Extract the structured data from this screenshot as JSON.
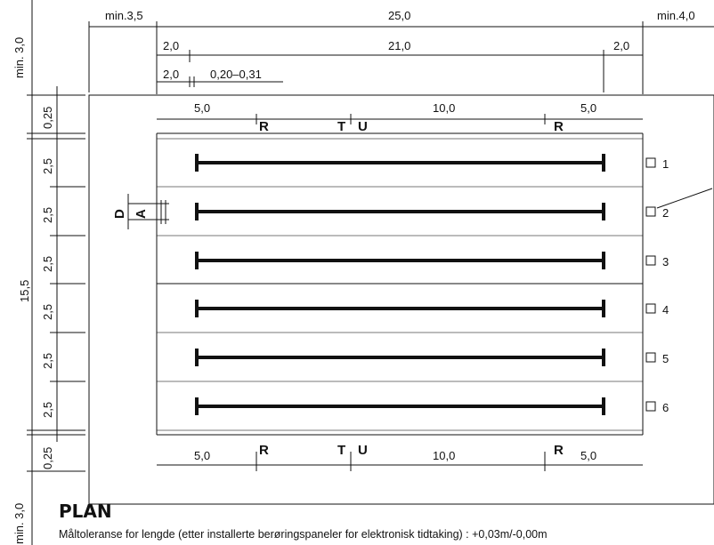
{
  "top_dims": {
    "overall": {
      "left": "min.3,5",
      "center": "25,0",
      "right": "min.4,0"
    },
    "row2": {
      "left": "2,0",
      "center": "21,0",
      "right": "2,0"
    },
    "row3": {
      "left": "2,0",
      "tol": "0,20–0,31"
    }
  },
  "left_dims": {
    "top": "min. 3,0",
    "margin_top": "0,25",
    "lanes": [
      "2,5",
      "2,5",
      "2,5",
      "2,5",
      "2,5",
      "2,5"
    ],
    "total": "15,5",
    "margin_bottom": "0,25",
    "bottom": "min. 3,0"
  },
  "inner_top": {
    "d1": "5,0",
    "d2": "10,0",
    "d3": "5,0",
    "r1": "R",
    "t": "T",
    "u": "U",
    "r2": "R"
  },
  "inner_bottom": {
    "d1": "5,0",
    "d2": "10,0",
    "d3": "5,0",
    "r1": "R",
    "t": "T",
    "u": "U",
    "r2": "R"
  },
  "lane_marks": {
    "d": "D",
    "a": "A"
  },
  "lanes": [
    "1",
    "2",
    "3",
    "4",
    "5",
    "6"
  ],
  "title": "PLAN",
  "note": "Måltoleranse for lengde (etter installerte berøringspaneler for elektronisk tidtaking) : +0,03m/-0,00m"
}
